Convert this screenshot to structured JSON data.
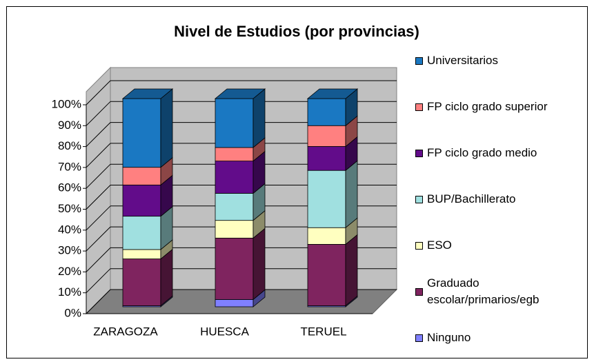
{
  "chart_data": {
    "type": "bar3d_stacked_percent",
    "title": "Nivel de Estudios (por provincias)",
    "categories": [
      "ZARAGOZA",
      "HUESCA",
      "TERUEL"
    ],
    "series": [
      {
        "name": "Ninguno",
        "color": "#8080ff",
        "values": [
          0.5,
          3.5,
          0.5
        ]
      },
      {
        "name": "Graduado\nescolar/primarios/egb",
        "color": "#7f245f",
        "values": [
          22.5,
          29.5,
          29.5
        ]
      },
      {
        "name": "ESO",
        "color": "#ffffc0",
        "values": [
          4.5,
          8.5,
          8
        ]
      },
      {
        "name": "BUP/Bachillerato",
        "color": "#a0e0e0",
        "values": [
          16,
          13,
          27.5
        ]
      },
      {
        "name": "FP ciclo grado medio",
        "color": "#620c8a",
        "values": [
          15,
          15.5,
          11.5
        ]
      },
      {
        "name": "FP ciclo grado superior",
        "color": "#ff8080",
        "values": [
          8.5,
          6.5,
          10
        ]
      },
      {
        "name": "Universitarios",
        "color": "#1a78c2",
        "values": [
          33,
          23.5,
          13
        ]
      }
    ],
    "ylim": [
      0,
      100
    ],
    "yticks": [
      {
        "value": 0,
        "label": "0%"
      },
      {
        "value": 10,
        "label": "10%"
      },
      {
        "value": 20,
        "label": "20%"
      },
      {
        "value": 30,
        "label": "30%"
      },
      {
        "value": 40,
        "label": "40%"
      },
      {
        "value": 50,
        "label": "50%"
      },
      {
        "value": 60,
        "label": "60%"
      },
      {
        "value": 70,
        "label": "70%"
      },
      {
        "value": 80,
        "label": "80%"
      },
      {
        "value": 90,
        "label": "90%"
      },
      {
        "value": 100,
        "label": "100%"
      }
    ],
    "grid": true,
    "legend": "right"
  }
}
